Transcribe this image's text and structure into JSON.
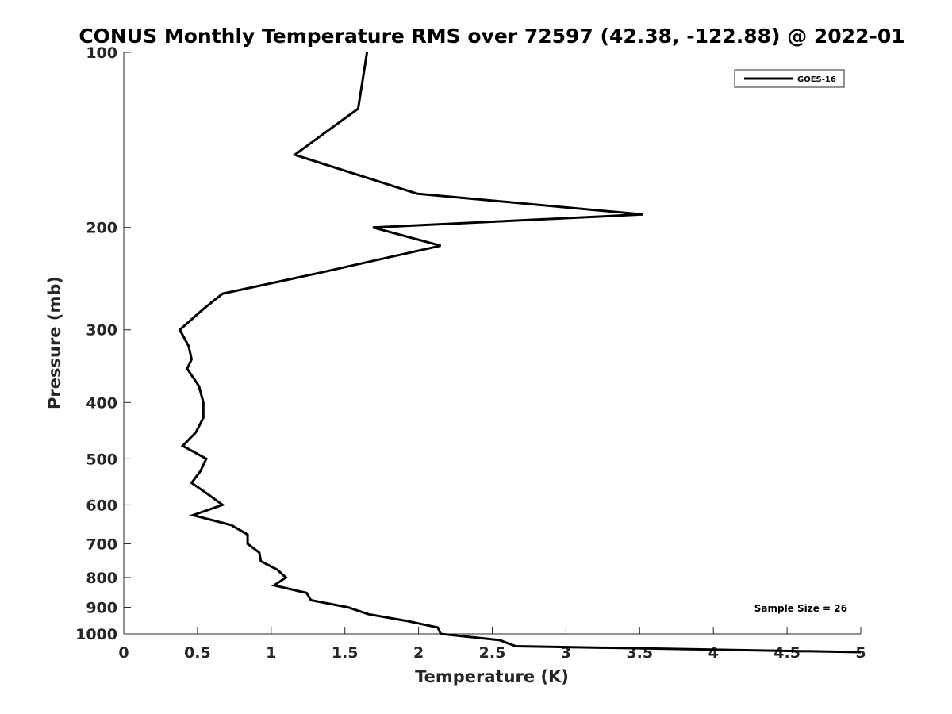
{
  "chart_data": {
    "type": "line",
    "title": "CONUS Monthly Temperature RMS over 72597 (42.38, -122.88) @ 2022-01",
    "xlabel": "Temperature (K)",
    "ylabel": "Pressure (mb)",
    "xlim": [
      0,
      5
    ],
    "ylim": [
      100,
      1000
    ],
    "yscale": "log",
    "yreversed": true,
    "xticks": [
      0,
      0.5,
      1,
      1.5,
      2,
      2.5,
      3,
      3.5,
      4,
      4.5,
      5
    ],
    "xtick_labels": [
      "0",
      "0.5",
      "1",
      "1.5",
      "2",
      "2.5",
      "3",
      "3.5",
      "4",
      "4.5",
      "5"
    ],
    "yticks": [
      100,
      200,
      300,
      400,
      500,
      600,
      700,
      800,
      900,
      1000
    ],
    "ytick_labels": [
      "100",
      "200",
      "300",
      "400",
      "500",
      "600",
      "700",
      "800",
      "900",
      "1000"
    ],
    "grid": false,
    "legend_position": "top-right",
    "annotation": "Sample Size = 26",
    "series": [
      {
        "name": "GOES-16",
        "color": "#000000",
        "points": [
          [
            1.65,
            100
          ],
          [
            1.59,
            125
          ],
          [
            1.16,
            150
          ],
          [
            1.99,
            175
          ],
          [
            3.52,
            190
          ],
          [
            1.69,
            200
          ],
          [
            2.15,
            215
          ],
          [
            1.31,
            240
          ],
          [
            0.67,
            260
          ],
          [
            0.55,
            275
          ],
          [
            0.38,
            300
          ],
          [
            0.44,
            320
          ],
          [
            0.46,
            337
          ],
          [
            0.43,
            350
          ],
          [
            0.51,
            375
          ],
          [
            0.54,
            400
          ],
          [
            0.54,
            425
          ],
          [
            0.49,
            450
          ],
          [
            0.4,
            475
          ],
          [
            0.56,
            500
          ],
          [
            0.52,
            525
          ],
          [
            0.46,
            550
          ],
          [
            0.57,
            575
          ],
          [
            0.67,
            600
          ],
          [
            0.47,
            625
          ],
          [
            0.73,
            650
          ],
          [
            0.84,
            675
          ],
          [
            0.84,
            700
          ],
          [
            0.92,
            725
          ],
          [
            0.93,
            750
          ],
          [
            1.04,
            775
          ],
          [
            1.1,
            800
          ],
          [
            1.02,
            825
          ],
          [
            1.24,
            850
          ],
          [
            1.27,
            875
          ],
          [
            1.52,
            900
          ],
          [
            1.66,
            925
          ],
          [
            1.92,
            950
          ],
          [
            2.13,
            975
          ],
          [
            2.15,
            1000
          ],
          [
            2.55,
            1025
          ],
          [
            2.66,
            1050
          ],
          [
            5.0,
            1075
          ]
        ]
      }
    ]
  }
}
